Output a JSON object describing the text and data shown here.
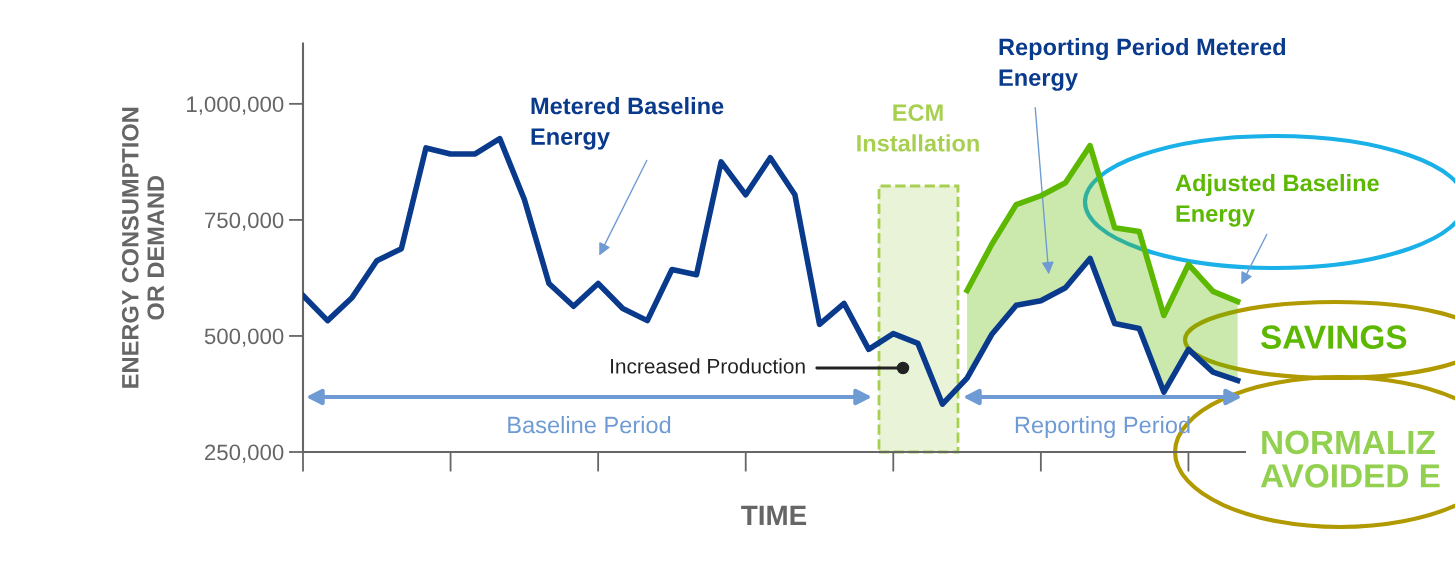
{
  "chart_data": {
    "type": "line",
    "xlabel": "TIME",
    "ylabel": "ENERGY CONSUMPTION\nOR DEMAND",
    "categories": [
      null,
      null,
      null,
      null,
      null,
      null,
      null,
      null,
      null,
      null,
      null,
      null,
      null,
      null,
      null,
      null,
      null,
      null,
      null,
      null,
      null,
      null,
      null,
      null,
      null,
      null,
      null,
      null,
      null,
      null,
      null,
      null,
      null,
      null,
      null,
      null,
      null,
      null,
      null
    ],
    "ylim": [
      250000,
      1130000
    ],
    "yticks": [
      {
        "value": 250000,
        "label": "250,000"
      },
      {
        "value": 500000,
        "label": "500,000"
      },
      {
        "value": 750000,
        "label": "750,000"
      },
      {
        "value": 1000000,
        "label": "1,000,000"
      }
    ],
    "tick_labels": "y",
    "marker": "none",
    "line_style": "solid",
    "series": [
      {
        "color": "#0a3a8c",
        "values": [
          587000,
          533000,
          583000,
          662000,
          688000,
          905000,
          892000,
          892000,
          925000,
          794000,
          613000,
          564000,
          613000,
          559000,
          533000,
          643000,
          632000,
          875000,
          804000,
          884000,
          804000,
          525000,
          570000,
          471000,
          505000,
          484000,
          353000,
          409000,
          503000,
          566000,
          576000,
          604000,
          667000,
          527000,
          516000,
          379000,
          471000,
          422000,
          404000
        ]
      },
      {
        "color": "#5cb800",
        "values": [
          null,
          null,
          null,
          null,
          null,
          null,
          null,
          null,
          null,
          null,
          null,
          null,
          null,
          null,
          null,
          null,
          null,
          null,
          null,
          null,
          null,
          null,
          null,
          null,
          null,
          null,
          null,
          598000,
          697000,
          783000,
          802000,
          830000,
          910000,
          733000,
          725000,
          544000,
          654000,
          596000,
          574000
        ],
        "lower": [
          null,
          null,
          null,
          null,
          null,
          null,
          null,
          null,
          null,
          null,
          null,
          null,
          null,
          null,
          null,
          null,
          null,
          null,
          null,
          null,
          null,
          null,
          null,
          null,
          null,
          null,
          null,
          409000,
          503000,
          566000,
          576000,
          604000,
          667000,
          527000,
          516000,
          379000,
          471000,
          422000,
          404000
        ],
        "upper": [
          null,
          null,
          null,
          null,
          null,
          null,
          null,
          null,
          null,
          null,
          null,
          null,
          null,
          null,
          null,
          null,
          null,
          null,
          null,
          null,
          null,
          null,
          null,
          null,
          null,
          null,
          null,
          598000,
          697000,
          783000,
          802000,
          830000,
          910000,
          733000,
          725000,
          544000,
          654000,
          596000,
          574000
        ]
      }
    ],
    "annotations": [
      "Metered Baseline\nEnergy",
      "Reporting Period Metered\nEnergy",
      "Adjusted Baseline\nEnergy",
      "Increased Production",
      "ECM\nInstallation",
      "Baseline Period",
      "Reporting Period",
      "SAVINGS",
      "NORMALIZ\nAVOIDED E"
    ]
  }
}
